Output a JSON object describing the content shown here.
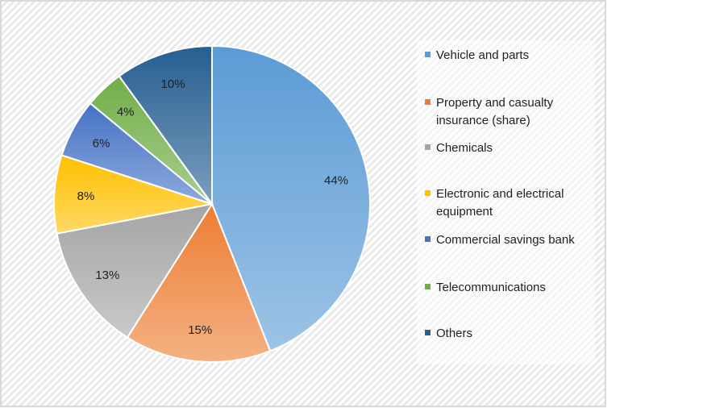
{
  "chart_data": {
    "type": "pie",
    "title": "",
    "start_angle": "12 o'clock",
    "direction": "clockwise",
    "legend_position": "right",
    "slices": [
      {
        "label": "Vehicle and parts",
        "value": 44,
        "display": "44%",
        "color": "#5b9bd5"
      },
      {
        "label": "Property and casualty insurance (share)",
        "value": 15,
        "display": "15%",
        "color": "#ed7d31"
      },
      {
        "label": "Chemicals",
        "value": 13,
        "display": "13%",
        "color": "#a5a5a5"
      },
      {
        "label": "Electronic and electrical equipment",
        "value": 8,
        "display": "8%",
        "color": "#ffc000"
      },
      {
        "label": "Commercial savings bank",
        "value": 6,
        "display": "6%",
        "color": "#4472c4"
      },
      {
        "label": "Telecommunications",
        "value": 4,
        "display": "4%",
        "color": "#70ad47"
      },
      {
        "label": "Others",
        "value": 10,
        "display": "10%",
        "color": "#255e91"
      }
    ],
    "legend_lines": [
      [
        "Vehicle and parts"
      ],
      [
        "Property and casualty",
        "insurance (share)"
      ],
      [
        "Chemicals"
      ],
      [
        "Electronic and electrical",
        "equipment"
      ],
      [
        "Commercial savings bank"
      ],
      [
        "Telecommunications"
      ],
      [
        "Others"
      ]
    ]
  }
}
